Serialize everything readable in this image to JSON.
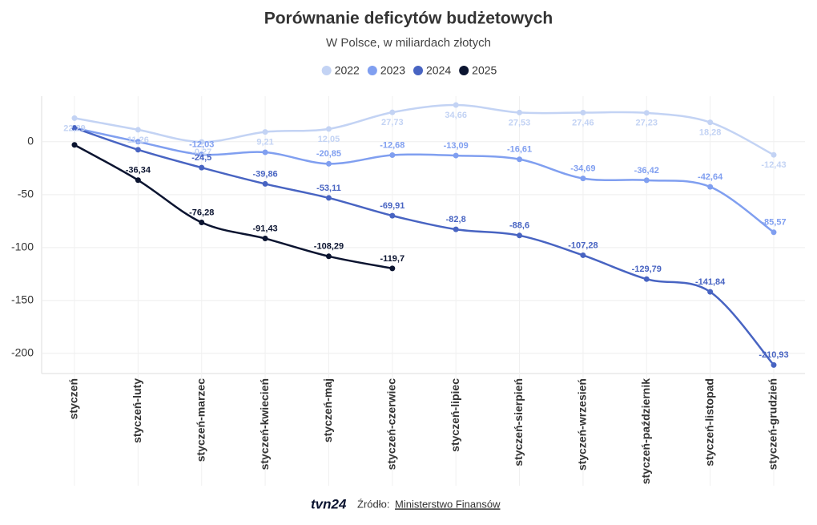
{
  "chart_data": {
    "type": "line",
    "title": "Porównanie deficytów budżetowych",
    "subtitle": "W Polsce, w miliardach złotych",
    "categories": [
      "styczeń",
      "styczeń-luty",
      "styczeń-marzec",
      "styczeń-kwiecień",
      "styczeń-maj",
      "styczeń-czerwiec",
      "styczeń-lipiec",
      "styczeń-sierpień",
      "styczeń-wrzesień",
      "styczeń-październik",
      "styczeń-listopad",
      "styczeń-grudzień"
    ],
    "series": [
      {
        "name": "2022",
        "color": "#c3d3f4",
        "values": [
          22.29,
          11.26,
          -0.27,
          9.21,
          12.05,
          27.73,
          34.66,
          27.53,
          27.46,
          27.23,
          18.28,
          -12.43
        ],
        "value_labels": [
          "22,29",
          "11,26",
          "-0,27",
          "9,21",
          "12,05",
          "27,73",
          "34,66",
          "27,53",
          "27,46",
          "27,23",
          "18,28",
          "-12,43"
        ]
      },
      {
        "name": "2023",
        "color": "#809ff0",
        "values": [
          13,
          0,
          -12.03,
          -10,
          -20.85,
          -12.68,
          -13.09,
          -16.61,
          -34.69,
          -36.42,
          -42.64,
          -85.57
        ],
        "value_labels": [
          null,
          null,
          "-12,03",
          null,
          "-20,85",
          "-12,68",
          "-13,09",
          "-16,61",
          "-34,69",
          "-36,42",
          "-42,64",
          "-85,57"
        ]
      },
      {
        "name": "2024",
        "color": "#4864c2",
        "values": [
          13,
          -7.6,
          -24.5,
          -39.86,
          -53.11,
          -69.91,
          -82.8,
          -88.6,
          -107.28,
          -129.79,
          -141.84,
          -210.93
        ],
        "value_labels": [
          null,
          null,
          "-24,5",
          "-39,86",
          "-53,11",
          "-69,91",
          "-82,8",
          "-88,6",
          "-107,28",
          "-129,79",
          "-141,84",
          "-210,93"
        ]
      },
      {
        "name": "2025",
        "color": "#0b1430",
        "values": [
          -3,
          -36.34,
          -76.28,
          -91.43,
          -108.29,
          -119.7,
          null,
          null,
          null,
          null,
          null,
          null
        ],
        "value_labels": [
          null,
          "-36,34",
          "-76,28",
          "-91,43",
          "-108,29",
          "-119,7",
          null,
          null,
          null,
          null,
          null,
          null
        ]
      }
    ],
    "ylim": [
      -219,
      43
    ],
    "yticks": [
      0,
      -50,
      -100,
      -150,
      -200
    ],
    "grid": true,
    "legend": "top"
  },
  "footer": {
    "logo": "tvn24",
    "source_label": "Źródło:",
    "source": "Ministerstwo Finansów"
  }
}
